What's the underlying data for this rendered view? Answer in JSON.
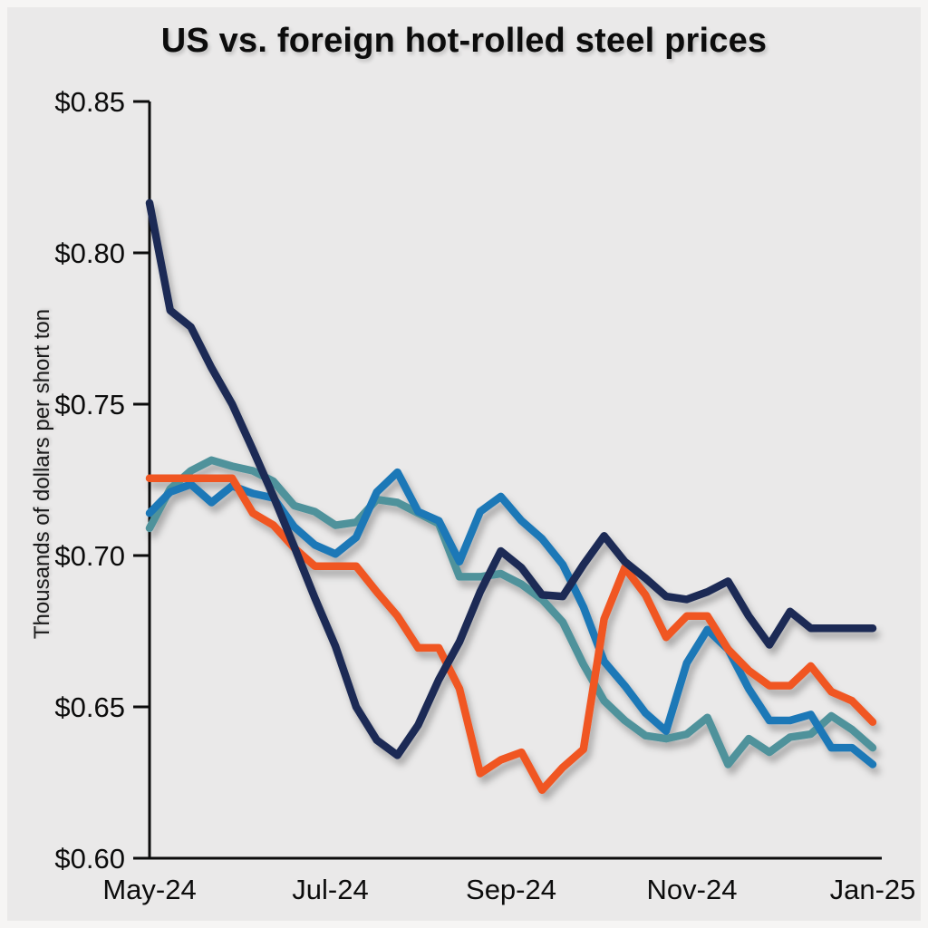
{
  "chart_data": {
    "type": "line",
    "title": "US vs. foreign hot-rolled steel prices",
    "ylabel": "Thousands of dollars per short ton",
    "xlabel": "",
    "ylim": [
      0.6,
      0.85
    ],
    "y_ticks": [
      0.85,
      0.8,
      0.75,
      0.7,
      0.65,
      0.6
    ],
    "y_tick_labels": [
      "$0.85",
      "$0.80",
      "$0.75",
      "$0.70",
      "$0.65",
      "$0.60"
    ],
    "x_tick_labels": [
      "May-24",
      "Jul-24",
      "Sep-24",
      "Nov-24",
      "Jan-25"
    ],
    "x_frequency": "weekly",
    "x_start": "May-24",
    "x_end": "Jan-25",
    "grid": false,
    "legend": "none",
    "background_color": "#eae9e9",
    "axis_color": "#0c0c0c",
    "series": [
      {
        "name": "teal",
        "color": "#4f929b",
        "values": [
          0.709,
          0.722,
          0.728,
          0.7315,
          0.7295,
          0.728,
          0.7245,
          0.7165,
          0.7145,
          0.71,
          0.711,
          0.7185,
          0.7175,
          0.714,
          0.7105,
          0.693,
          0.693,
          0.694,
          0.6905,
          0.6855,
          0.678,
          0.664,
          0.652,
          0.6455,
          0.6405,
          0.6395,
          0.641,
          0.6465,
          0.631,
          0.6395,
          0.635,
          0.64,
          0.641,
          0.647,
          0.6425,
          0.6365
        ]
      },
      {
        "name": "blue",
        "color": "#1f78b7",
        "values": [
          0.714,
          0.721,
          0.7235,
          0.7175,
          0.723,
          0.7205,
          0.719,
          0.7095,
          0.7035,
          0.7005,
          0.706,
          0.721,
          0.7275,
          0.7145,
          0.7115,
          0.698,
          0.7145,
          0.7195,
          0.7115,
          0.7055,
          0.697,
          0.683,
          0.665,
          0.657,
          0.648,
          0.642,
          0.6645,
          0.6755,
          0.669,
          0.656,
          0.6455,
          0.6455,
          0.6475,
          0.6365,
          0.6365,
          0.631
        ]
      },
      {
        "name": "orange",
        "color": "#f05624",
        "values": [
          0.7255,
          0.7255,
          0.7255,
          0.7255,
          0.7255,
          0.714,
          0.71,
          0.7025,
          0.6965,
          0.6965,
          0.6965,
          0.688,
          0.68,
          0.6695,
          0.6695,
          0.656,
          0.628,
          0.6325,
          0.635,
          0.6225,
          0.63,
          0.636,
          0.679,
          0.696,
          0.687,
          0.673,
          0.68,
          0.68,
          0.669,
          0.662,
          0.657,
          0.657,
          0.6635,
          0.655,
          0.652,
          0.645
        ]
      },
      {
        "name": "navy",
        "color": "#1b2a55",
        "values": [
          0.8165,
          0.781,
          0.7755,
          0.762,
          0.75,
          0.735,
          0.7195,
          0.703,
          0.686,
          0.67,
          0.65,
          0.639,
          0.634,
          0.644,
          0.659,
          0.6715,
          0.688,
          0.7015,
          0.696,
          0.687,
          0.6865,
          0.697,
          0.7065,
          0.698,
          0.6925,
          0.6865,
          0.6855,
          0.688,
          0.6915,
          0.68,
          0.6705,
          0.6815,
          0.676,
          0.676,
          0.676,
          0.676
        ]
      }
    ]
  }
}
